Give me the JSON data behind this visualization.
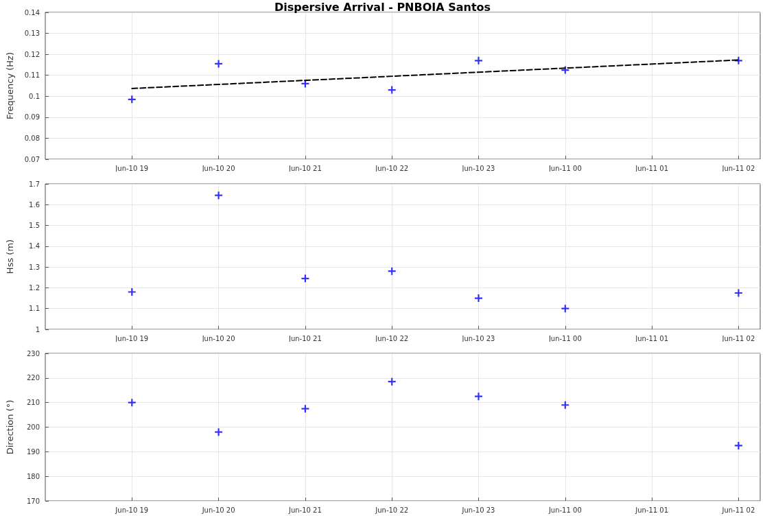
{
  "chart_data": [
    {
      "type": "scatter",
      "title": "Dispersive Arrival - PNBOIA Santos",
      "ylabel": "Frequency (Hz)",
      "x": [
        "--06-10T19:00",
        "--06-10T20:00",
        "--06-10T21:00",
        "--06-10T22:00",
        "--06-10T23:00",
        "--06-11T00:00",
        "--06-11T02:00"
      ],
      "series": [
        {
          "color": "#0000ff",
          "marker": "cross",
          "values": [
            0.0985,
            0.1155,
            0.106,
            0.103,
            0.117,
            0.1125,
            0.117
          ]
        },
        {
          "type": "line",
          "color": "#000000",
          "marker": "none",
          "line_style": "dashed",
          "x": [
            "--06-10T19:00",
            "--06-11T02:00"
          ],
          "values": [
            0.1037,
            0.1173
          ]
        }
      ],
      "xlim": [
        "--06-10T18:00",
        "--06-11T02:15"
      ],
      "xticks": [
        {
          "value": "--06-10T19:00",
          "label": "Jun-10 19"
        },
        {
          "value": "--06-10T20:00",
          "label": "Jun-10 20"
        },
        {
          "value": "--06-10T21:00",
          "label": "Jun-10 21"
        },
        {
          "value": "--06-10T22:00",
          "label": "Jun-10 22"
        },
        {
          "value": "--06-10T23:00",
          "label": "Jun-10 23"
        },
        {
          "value": "--06-11T00:00",
          "label": "Jun-11 00"
        },
        {
          "value": "--06-11T01:00",
          "label": "Jun-11 01"
        },
        {
          "value": "--06-11T02:00",
          "label": "Jun-11 02"
        }
      ],
      "ylim": [
        0.07,
        0.14
      ],
      "yticks": [
        0.07,
        0.08,
        0.09,
        0.1,
        0.11,
        0.12,
        0.13,
        0.14
      ],
      "grid": true
    },
    {
      "type": "scatter",
      "ylabel": "Hss (m)",
      "x": [
        "--06-10T19:00",
        "--06-10T20:00",
        "--06-10T21:00",
        "--06-10T22:00",
        "--06-10T23:00",
        "--06-11T00:00",
        "--06-11T02:00"
      ],
      "series": [
        {
          "color": "#0000ff",
          "marker": "cross",
          "values": [
            1.18,
            1.645,
            1.245,
            1.28,
            1.15,
            1.1,
            1.175
          ]
        }
      ],
      "xlim": [
        "--06-10T18:00",
        "--06-11T02:15"
      ],
      "xticks": [
        {
          "value": "--06-10T19:00",
          "label": "Jun-10 19"
        },
        {
          "value": "--06-10T20:00",
          "label": "Jun-10 20"
        },
        {
          "value": "--06-10T21:00",
          "label": "Jun-10 21"
        },
        {
          "value": "--06-10T22:00",
          "label": "Jun-10 22"
        },
        {
          "value": "--06-10T23:00",
          "label": "Jun-10 23"
        },
        {
          "value": "--06-11T00:00",
          "label": "Jun-11 00"
        },
        {
          "value": "--06-11T01:00",
          "label": "Jun-11 01"
        },
        {
          "value": "--06-11T02:00",
          "label": "Jun-11 02"
        }
      ],
      "ylim": [
        1,
        1.7
      ],
      "yticks": [
        1,
        1.1,
        1.2,
        1.3,
        1.4,
        1.5,
        1.6,
        1.7
      ],
      "grid": true
    },
    {
      "type": "scatter",
      "ylabel": "Direction (°)",
      "x": [
        "--06-10T19:00",
        "--06-10T20:00",
        "--06-10T21:00",
        "--06-10T22:00",
        "--06-10T23:00",
        "--06-11T00:00",
        "--06-11T02:00"
      ],
      "series": [
        {
          "color": "#0000ff",
          "marker": "cross",
          "values": [
            210,
            198,
            207.5,
            218.5,
            212.5,
            209,
            192.5
          ]
        }
      ],
      "xlim": [
        "--06-10T18:00",
        "--06-11T02:15"
      ],
      "xticks": [
        {
          "value": "--06-10T19:00",
          "label": "Jun-10 19"
        },
        {
          "value": "--06-10T20:00",
          "label": "Jun-10 20"
        },
        {
          "value": "--06-10T21:00",
          "label": "Jun-10 21"
        },
        {
          "value": "--06-10T22:00",
          "label": "Jun-10 22"
        },
        {
          "value": "--06-10T23:00",
          "label": "Jun-10 23"
        },
        {
          "value": "--06-11T00:00",
          "label": "Jun-11 00"
        },
        {
          "value": "--06-11T01:00",
          "label": "Jun-11 01"
        },
        {
          "value": "--06-11T02:00",
          "label": "Jun-11 02"
        }
      ],
      "ylim": [
        170,
        230
      ],
      "yticks": [
        170,
        180,
        190,
        200,
        210,
        220,
        230
      ],
      "grid": true
    }
  ]
}
